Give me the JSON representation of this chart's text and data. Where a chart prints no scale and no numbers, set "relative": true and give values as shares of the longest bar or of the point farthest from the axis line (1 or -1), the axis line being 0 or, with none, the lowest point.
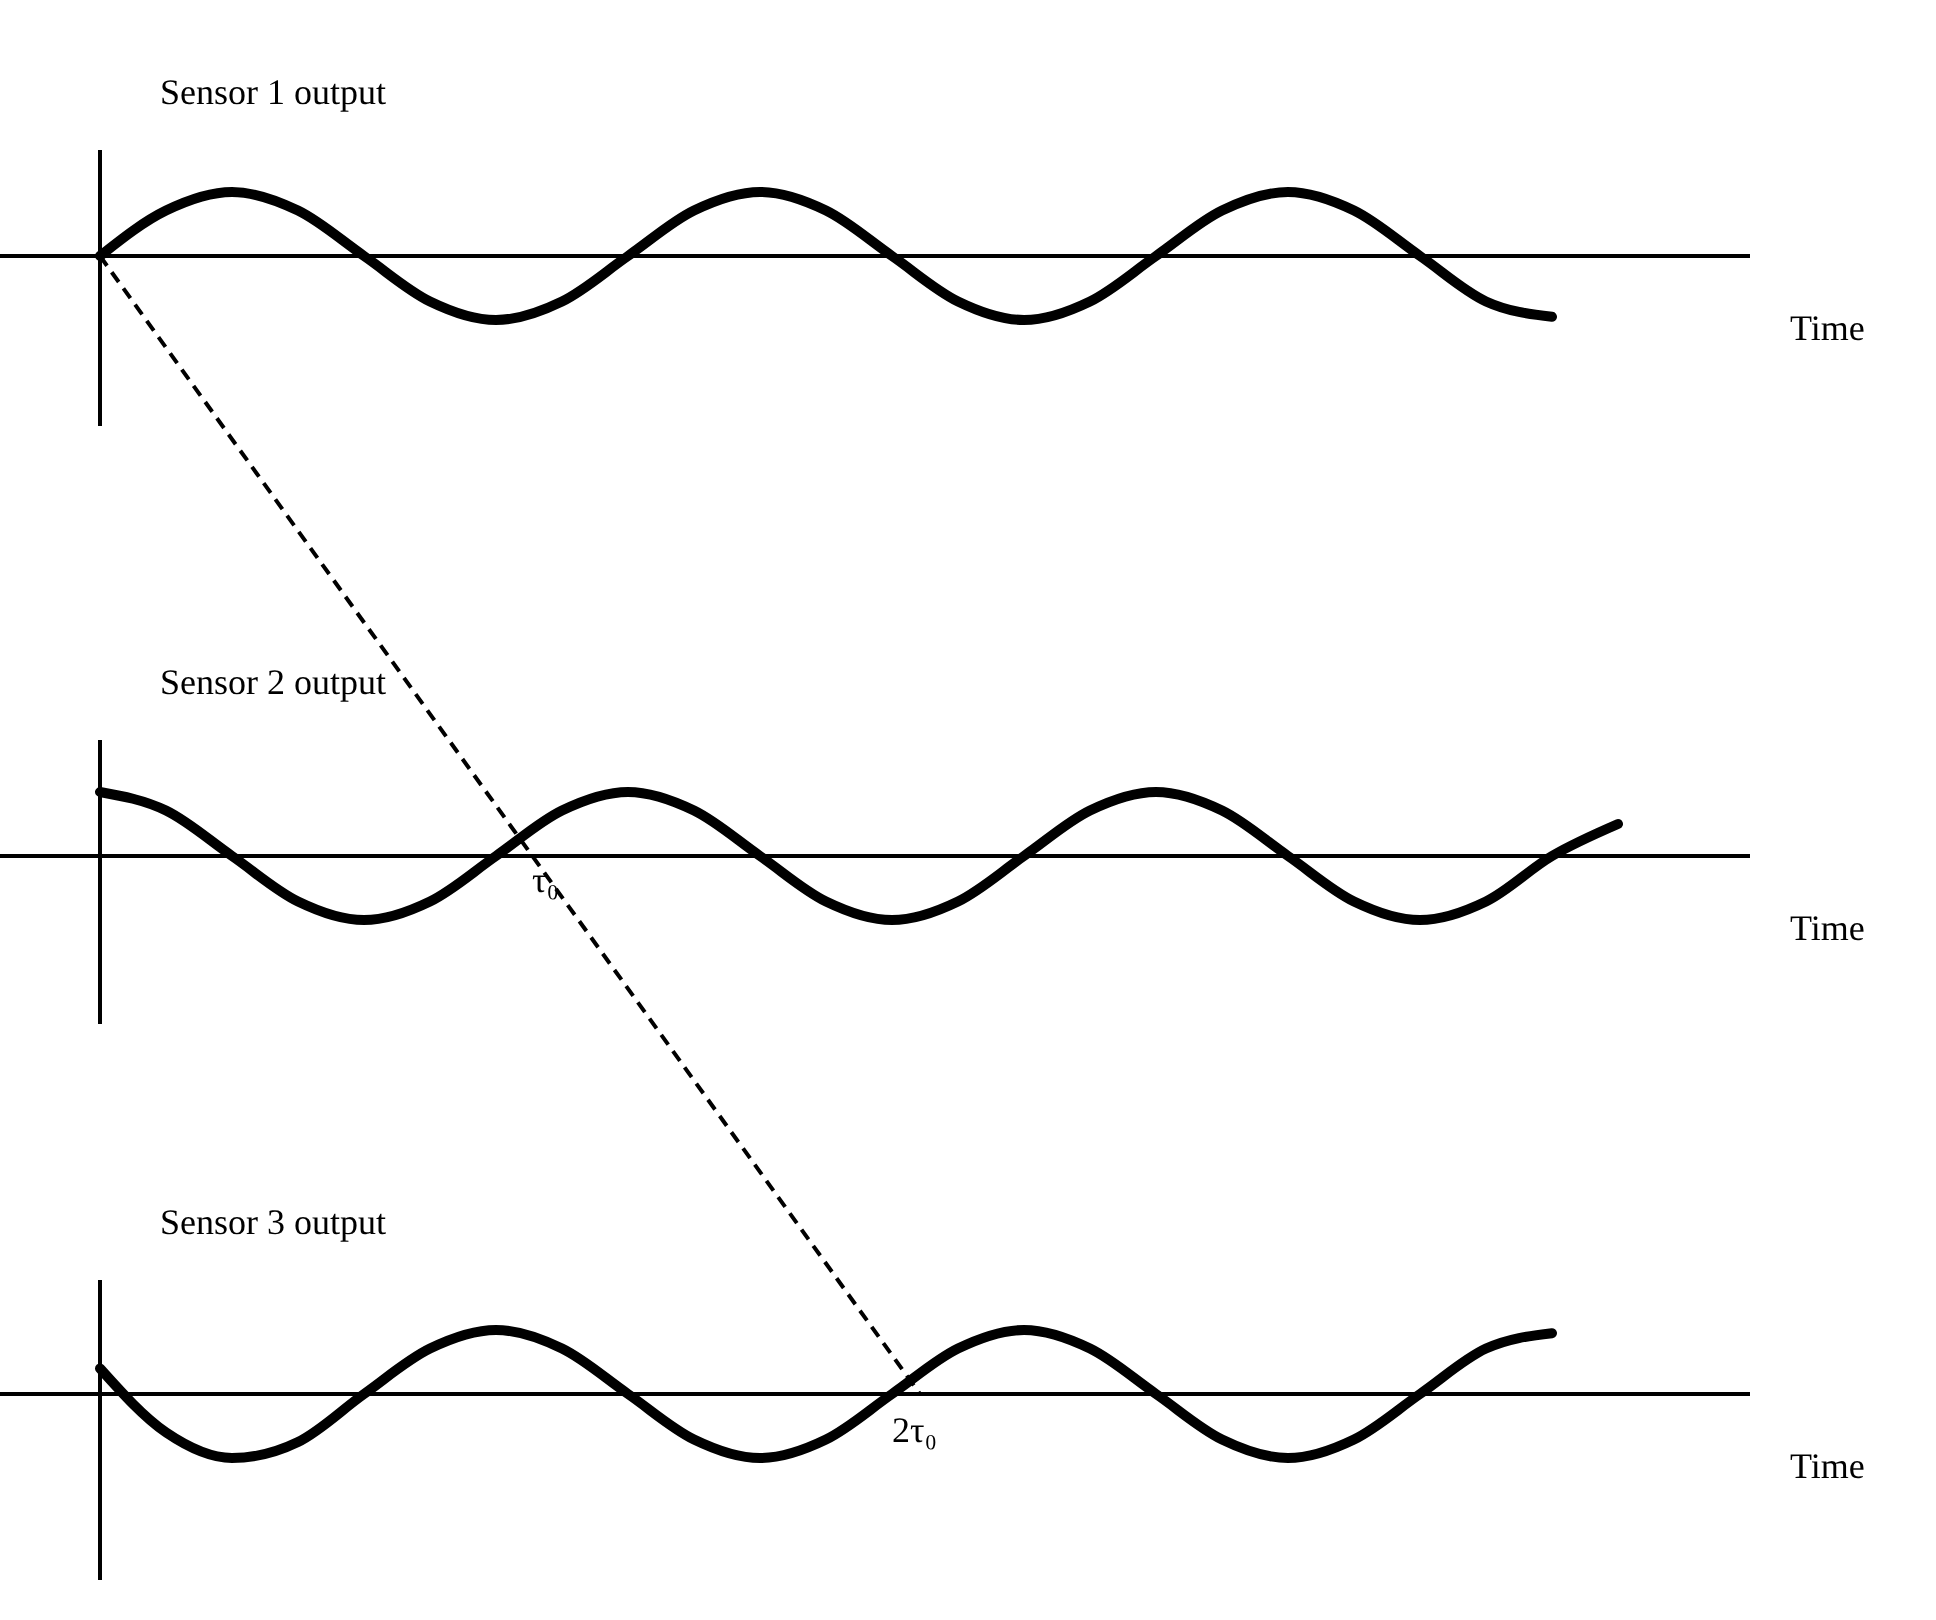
{
  "chart_data": [
    {
      "type": "line",
      "relative": true,
      "ylabel": "Sensor 1 output",
      "xlabel": "Time",
      "marker": "none",
      "line_style": "solid",
      "categories": [
        null,
        null,
        null,
        null,
        null,
        null,
        null,
        null,
        null,
        null,
        null,
        null,
        null,
        null,
        null,
        null,
        null,
        null,
        null,
        null,
        null,
        null,
        null,
        null,
        null,
        null
      ],
      "series": [
        {
          "color": "#000000",
          "values": [
            0,
            0.71,
            1,
            0.71,
            0,
            -0.71,
            -1,
            -0.71,
            0,
            0.71,
            1,
            0.71,
            0,
            -0.71,
            -1,
            -0.71,
            0,
            0.71,
            1,
            0.71,
            0,
            -0.71,
            -0.95,
            null,
            null,
            null
          ]
        }
      ]
    },
    {
      "type": "line",
      "relative": true,
      "ylabel": "Sensor 2 output",
      "xlabel": "Time",
      "marker": "none",
      "line_style": "solid",
      "annotations": [
        "τ₀"
      ],
      "categories": [
        null,
        null,
        null,
        null,
        null,
        null,
        null,
        null,
        null,
        null,
        null,
        null,
        null,
        null,
        null,
        null,
        null,
        null,
        null,
        null,
        null,
        null,
        null,
        null,
        null,
        null
      ],
      "series": [
        {
          "color": "#000000",
          "values": [
            1,
            0.71,
            0,
            -0.71,
            -1,
            -0.71,
            0,
            0.71,
            1,
            0.71,
            0,
            -0.71,
            -1,
            -0.71,
            0,
            0.71,
            1,
            0.71,
            0,
            -0.71,
            -1,
            -0.71,
            0,
            0.5,
            null,
            null
          ]
        }
      ]
    },
    {
      "type": "line",
      "relative": true,
      "ylabel": "Sensor 3 output",
      "xlabel": "Time",
      "marker": "none",
      "line_style": "solid",
      "annotations": [
        "2τ₀"
      ],
      "categories": [
        null,
        null,
        null,
        null,
        null,
        null,
        null,
        null,
        null,
        null,
        null,
        null,
        null,
        null,
        null,
        null,
        null,
        null,
        null,
        null,
        null,
        null,
        null,
        null,
        null,
        null
      ],
      "series": [
        {
          "color": "#000000",
          "values": [
            0.4,
            -0.6,
            -1,
            -0.75,
            0,
            0.71,
            1,
            0.71,
            0,
            -0.71,
            -1,
            -0.71,
            0,
            0.71,
            1,
            0.71,
            0,
            -0.71,
            -1,
            -0.71,
            0,
            0.71,
            0.95,
            null,
            null,
            null
          ]
        }
      ]
    }
  ]
}
